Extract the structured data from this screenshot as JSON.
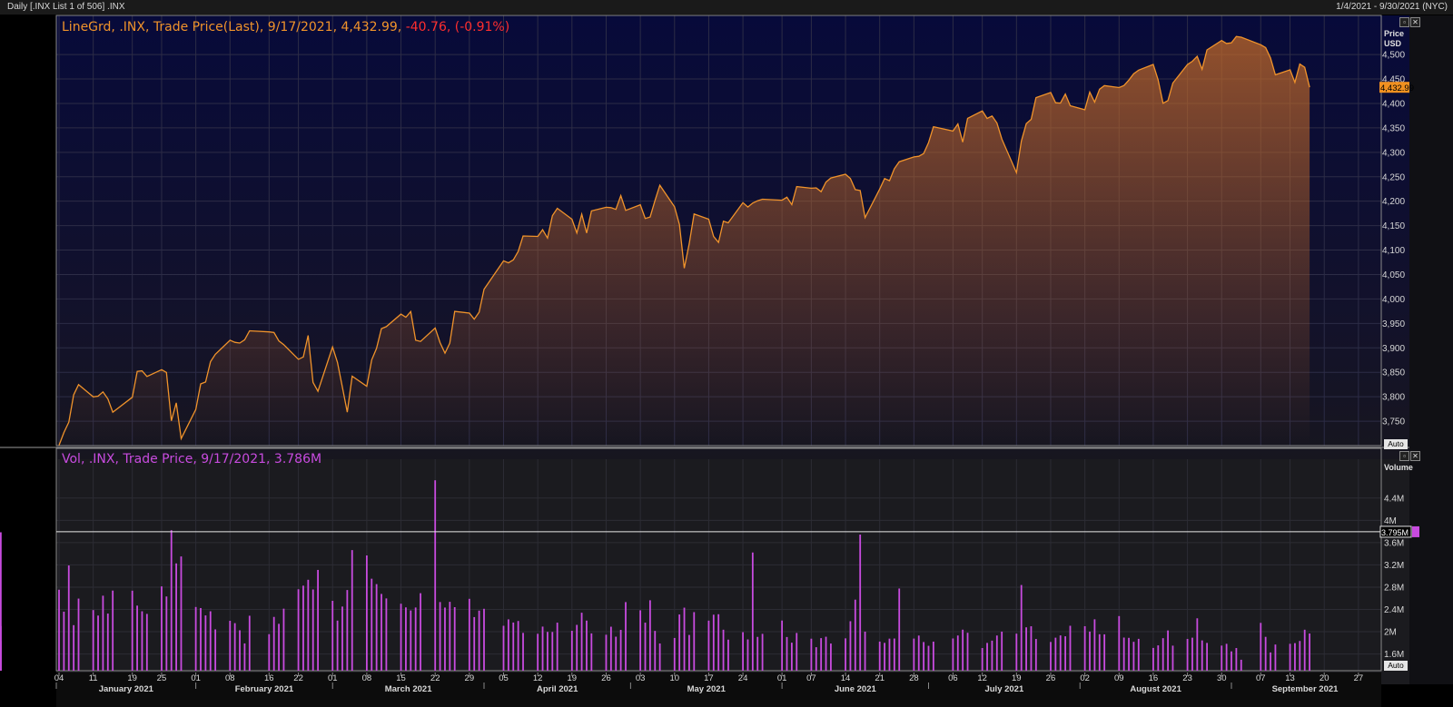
{
  "header": {
    "left": "Daily [.INX List 1 of 506] .INX",
    "right": "1/4/2021 - 9/30/2021 (NYC)"
  },
  "price_legend": {
    "main": "LineGrd, .INX, Trade Price(Last), 9/17/2021, 4,432.99,",
    "change": "-40.76, (-0.91%)"
  },
  "volume_legend": {
    "text": "Vol, .INX, Trade Price, 9/17/2021, 3.786M"
  },
  "price_axis": {
    "title_line1": "Price",
    "title_line2": "USD",
    "auto": "Auto",
    "last_tag": "4,432.99"
  },
  "volume_axis": {
    "title": "Volume",
    "auto": "Auto",
    "last_tag": "3.795M"
  },
  "colors": {
    "price_line": "#f0932b",
    "volume_bar": "#c84bdf",
    "negative": "#ff2e2e",
    "grid": "#2c2c46"
  },
  "chart_data": [
    {
      "type": "area",
      "title": "LineGrd, .INX, Trade Price(Last)",
      "xlabel": "",
      "ylabel": "Price USD",
      "ylim": [
        3700,
        4580
      ],
      "yticks": [
        "3,750",
        "3,800",
        "3,850",
        "3,900",
        "3,950",
        "4,000",
        "4,050",
        "4,100",
        "4,150",
        "4,200",
        "4,250",
        "4,300",
        "4,350",
        "4,400",
        "4,450",
        "4,500"
      ],
      "grid": true,
      "last_value": 4432.99,
      "dates": [
        "2021-01-04",
        "2021-01-05",
        "2021-01-06",
        "2021-01-07",
        "2021-01-08",
        "2021-01-11",
        "2021-01-12",
        "2021-01-13",
        "2021-01-14",
        "2021-01-15",
        "2021-01-19",
        "2021-01-20",
        "2021-01-21",
        "2021-01-22",
        "2021-01-25",
        "2021-01-26",
        "2021-01-27",
        "2021-01-28",
        "2021-01-29",
        "2021-02-01",
        "2021-02-02",
        "2021-02-03",
        "2021-02-04",
        "2021-02-05",
        "2021-02-08",
        "2021-02-09",
        "2021-02-10",
        "2021-02-11",
        "2021-02-12",
        "2021-02-16",
        "2021-02-17",
        "2021-02-18",
        "2021-02-19",
        "2021-02-22",
        "2021-02-23",
        "2021-02-24",
        "2021-02-25",
        "2021-02-26",
        "2021-03-01",
        "2021-03-02",
        "2021-03-03",
        "2021-03-04",
        "2021-03-05",
        "2021-03-08",
        "2021-03-09",
        "2021-03-10",
        "2021-03-11",
        "2021-03-12",
        "2021-03-15",
        "2021-03-16",
        "2021-03-17",
        "2021-03-18",
        "2021-03-19",
        "2021-03-22",
        "2021-03-23",
        "2021-03-24",
        "2021-03-25",
        "2021-03-26",
        "2021-03-29",
        "2021-03-30",
        "2021-03-31",
        "2021-04-01",
        "2021-04-05",
        "2021-04-06",
        "2021-04-07",
        "2021-04-08",
        "2021-04-09",
        "2021-04-12",
        "2021-04-13",
        "2021-04-14",
        "2021-04-15",
        "2021-04-16",
        "2021-04-19",
        "2021-04-20",
        "2021-04-21",
        "2021-04-22",
        "2021-04-23",
        "2021-04-26",
        "2021-04-27",
        "2021-04-28",
        "2021-04-29",
        "2021-04-30",
        "2021-05-03",
        "2021-05-04",
        "2021-05-05",
        "2021-05-06",
        "2021-05-07",
        "2021-05-10",
        "2021-05-11",
        "2021-05-12",
        "2021-05-13",
        "2021-05-14",
        "2021-05-17",
        "2021-05-18",
        "2021-05-19",
        "2021-05-20",
        "2021-05-21",
        "2021-05-24",
        "2021-05-25",
        "2021-05-26",
        "2021-05-27",
        "2021-05-28",
        "2021-06-01",
        "2021-06-02",
        "2021-06-03",
        "2021-06-04",
        "2021-06-07",
        "2021-06-08",
        "2021-06-09",
        "2021-06-10",
        "2021-06-11",
        "2021-06-14",
        "2021-06-15",
        "2021-06-16",
        "2021-06-17",
        "2021-06-18",
        "2021-06-21",
        "2021-06-22",
        "2021-06-23",
        "2021-06-24",
        "2021-06-25",
        "2021-06-28",
        "2021-06-29",
        "2021-06-30",
        "2021-07-01",
        "2021-07-02",
        "2021-07-06",
        "2021-07-07",
        "2021-07-08",
        "2021-07-09",
        "2021-07-12",
        "2021-07-13",
        "2021-07-14",
        "2021-07-15",
        "2021-07-16",
        "2021-07-19",
        "2021-07-20",
        "2021-07-21",
        "2021-07-22",
        "2021-07-23",
        "2021-07-26",
        "2021-07-27",
        "2021-07-28",
        "2021-07-29",
        "2021-07-30",
        "2021-08-02",
        "2021-08-03",
        "2021-08-04",
        "2021-08-05",
        "2021-08-06",
        "2021-08-09",
        "2021-08-10",
        "2021-08-11",
        "2021-08-12",
        "2021-08-13",
        "2021-08-16",
        "2021-08-17",
        "2021-08-18",
        "2021-08-19",
        "2021-08-20",
        "2021-08-23",
        "2021-08-24",
        "2021-08-25",
        "2021-08-26",
        "2021-08-27",
        "2021-08-30",
        "2021-08-31",
        "2021-09-01",
        "2021-09-02",
        "2021-09-03",
        "2021-09-07",
        "2021-09-08",
        "2021-09-09",
        "2021-09-10",
        "2021-09-13",
        "2021-09-14",
        "2021-09-15",
        "2021-09-16",
        "2021-09-17"
      ],
      "values": [
        3700.65,
        3726.86,
        3748.14,
        3803.79,
        3824.68,
        3799.61,
        3801.19,
        3809.84,
        3795.54,
        3768.25,
        3798.91,
        3851.85,
        3853.07,
        3841.47,
        3855.36,
        3849.62,
        3750.77,
        3787.38,
        3714.24,
        3773.86,
        3826.31,
        3830.17,
        3871.74,
        3886.83,
        3915.59,
        3911.23,
        3909.88,
        3916.38,
        3934.83,
        3932.59,
        3931.33,
        3913.97,
        3906.71,
        3876.5,
        3881.37,
        3925.43,
        3829.34,
        3811.15,
        3901.82,
        3870.29,
        3819.72,
        3768.47,
        3841.94,
        3821.35,
        3875.44,
        3898.81,
        3939.34,
        3943.34,
        3968.94,
        3962.71,
        3974.12,
        3915.46,
        3913.1,
        3940.59,
        3910.52,
        3889.14,
        3909.52,
        3974.54,
        3971.09,
        3958.55,
        3972.89,
        4019.87,
        4077.91,
        4073.94,
        4079.95,
        4097.17,
        4128.8,
        4127.99,
        4141.59,
        4124.66,
        4170.42,
        4185.47,
        4163.26,
        4134.94,
        4173.42,
        4134.98,
        4180.17,
        4187.62,
        4186.72,
        4183.18,
        4211.47,
        4181.17,
        4192.66,
        4164.66,
        4167.59,
        4201.62,
        4232.6,
        4188.43,
        4152.1,
        4063.04,
        4112.5,
        4173.85,
        4163.29,
        4127.83,
        4115.68,
        4159.12,
        4155.86,
        4197.05,
        4188.13,
        4195.99,
        4200.88,
        4204.11,
        4202.04,
        4208.12,
        4192.85,
        4229.89,
        4226.52,
        4227.26,
        4219.55,
        4239.18,
        4247.44,
        4255.15,
        4246.59,
        4223.7,
        4221.86,
        4166.45,
        4224.79,
        4246.44,
        4241.84,
        4266.49,
        4280.7,
        4290.61,
        4291.8,
        4297.5,
        4319.94,
        4352.34,
        4343.54,
        4358.13,
        4320.82,
        4369.55,
        4384.63,
        4369.21,
        4374.3,
        4360.03,
        4327.16,
        4258.49,
        4323.06,
        4358.69,
        4367.48,
        4411.79,
        4422.3,
        4401.46,
        4400.64,
        4419.15,
        4395.26,
        4387.16,
        4423.15,
        4402.66,
        4429.1,
        4436.52,
        4432.35,
        4436.75,
        4447.7,
        4460.83,
        4468.0,
        4479.71,
        4448.08,
        4400.27,
        4405.8,
        4441.67,
        4479.53,
        4486.23,
        4496.19,
        4470.0,
        4509.37,
        4528.79,
        4522.68,
        4524.09,
        4536.95,
        4535.43,
        4520.03,
        4514.07,
        4493.28,
        4458.58,
        4468.73,
        4443.05,
        4480.7,
        4473.75,
        4432.99
      ]
    },
    {
      "type": "bar",
      "title": "Vol, .INX, Trade Price",
      "xlabel": "",
      "ylabel": "Volume",
      "ylim": [
        1300000,
        5000000
      ],
      "yticks": [
        "1.6M",
        "2M",
        "2.4M",
        "2.8M",
        "3.2M",
        "3.6M",
        "4M",
        "4.4M"
      ],
      "grid": true,
      "last_value": 3786000,
      "reference_line": 3795000,
      "reference_label": "3.795M",
      "values": [
        2754000,
        2360000,
        3190000,
        2118000,
        2595000,
        2389000,
        2290000,
        2647000,
        2326000,
        2739000,
        2737000,
        2469000,
        2367000,
        2320000,
        2814000,
        2633000,
        3823000,
        3227000,
        3352000,
        2444000,
        2425000,
        2293000,
        2367000,
        2042000,
        2196000,
        2154000,
        2026000,
        1790000,
        2287000,
        1956000,
        2266000,
        2142000,
        2414000,
        2763000,
        2827000,
        2933000,
        2759000,
        3110000,
        2555000,
        2200000,
        2452000,
        2749000,
        3466000,
        3370000,
        2952000,
        2855000,
        2679000,
        2598000,
        2503000,
        2437000,
        2382000,
        2435000,
        2692000,
        4720000,
        2533000,
        2434000,
        2537000,
        2441000,
        2591000,
        2263000,
        2379000,
        2412000,
        2107000,
        2222000,
        2165000,
        2193000,
        1979000,
        1963000,
        2092000,
        1997000,
        1996000,
        2163000,
        2017000,
        2123000,
        2341000,
        2200000,
        1970000,
        1946000,
        2090000,
        1911000,
        2033000,
        2532000,
        2385000,
        2163000,
        2565000,
        2015000,
        1789000,
        1888000,
        2310000,
        2432000,
        1942000,
        2352000,
        2199000,
        2306000,
        2314000,
        2036000,
        1858000,
        1992000,
        1862000,
        3423000,
        1907000,
        1962000,
        2201000,
        1905000,
        1803000,
        1978000,
        1875000,
        1722000,
        1885000,
        1910000,
        1788000,
        1881000,
        2189000,
        2576000,
        3745000,
        2002000,
        1823000,
        1800000,
        1876000,
        1878000,
        2776000,
        1877000,
        1931000,
        1815000,
        1747000,
        1822000,
        1879000,
        1932000,
        2037000,
        1981000,
        1707000,
        1799000,
        1840000,
        1932000,
        2002000,
        1965000,
        2839000,
        2079000,
        2098000,
        1870000,
        1816000,
        1893000,
        1934000,
        1918000,
        2107000,
        2099000,
        2003000,
        2223000,
        1955000,
        1953000,
        2281000,
        1895000,
        1890000,
        1819000,
        1872000,
        1709000,
        1755000,
        1884000,
        2023000,
        1750000,
        1871000,
        1893000,
        2241000,
        1844000,
        1799000,
        1751000,
        1783000,
        1647000,
        1707000,
        1497000,
        2159000,
        1908000,
        1628000,
        1770000,
        1783000,
        1795000,
        1834000,
        2036000,
        1968000,
        2103000,
        1832000,
        3786000
      ]
    }
  ],
  "x_day_labels": [
    "04",
    "11",
    "19",
    "25",
    "01",
    "08",
    "16",
    "22",
    "01",
    "08",
    "15",
    "22",
    "29",
    "05",
    "12",
    "19",
    "26",
    "03",
    "10",
    "17",
    "24",
    "01",
    "07",
    "14",
    "21",
    "28",
    "06",
    "12",
    "19",
    "26",
    "02",
    "09",
    "16",
    "23",
    "30",
    "07",
    "13",
    "20",
    "27"
  ],
  "x_day_dates": [
    "2021-01-04",
    "2021-01-11",
    "2021-01-19",
    "2021-01-25",
    "2021-02-01",
    "2021-02-08",
    "2021-02-16",
    "2021-02-22",
    "2021-03-01",
    "2021-03-08",
    "2021-03-15",
    "2021-03-22",
    "2021-03-29",
    "2021-04-05",
    "2021-04-12",
    "2021-04-19",
    "2021-04-26",
    "2021-05-03",
    "2021-05-10",
    "2021-05-17",
    "2021-05-24",
    "2021-06-01",
    "2021-06-07",
    "2021-06-14",
    "2021-06-21",
    "2021-06-28",
    "2021-07-06",
    "2021-07-12",
    "2021-07-19",
    "2021-07-26",
    "2021-08-02",
    "2021-08-09",
    "2021-08-16",
    "2021-08-23",
    "2021-08-30",
    "2021-09-07",
    "2021-09-13",
    "2021-09-20",
    "2021-09-27"
  ],
  "x_month_labels": [
    "January 2021",
    "February 2021",
    "March 2021",
    "April 2021",
    "May 2021",
    "June 2021",
    "July 2021",
    "August 2021",
    "September 2021"
  ],
  "x_range": [
    "2021-01-04",
    "2021-09-30"
  ]
}
